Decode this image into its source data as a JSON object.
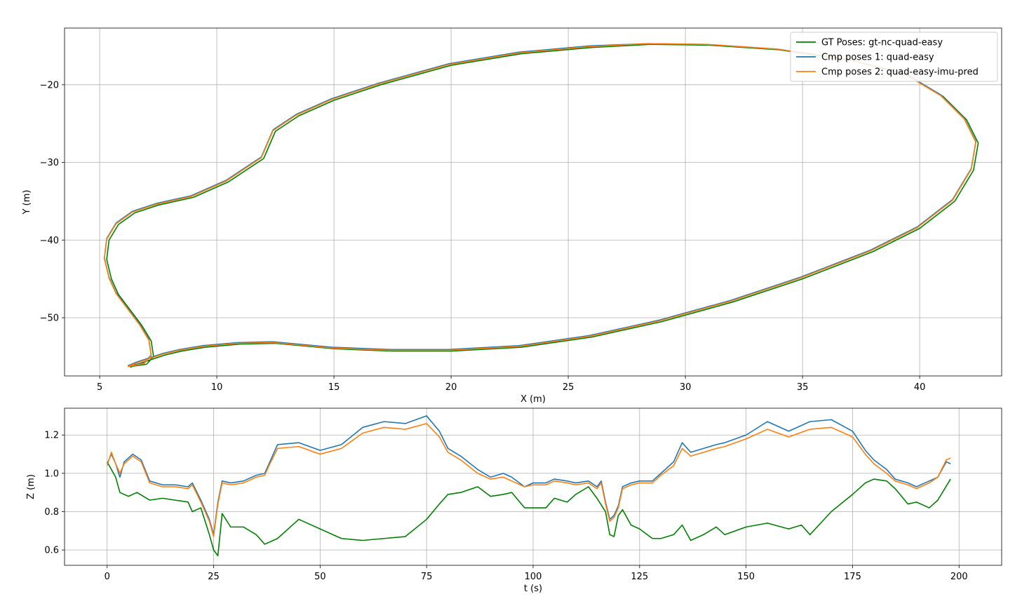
{
  "chart_data": [
    {
      "type": "line",
      "xlabel": "X (m)",
      "ylabel": "Y (m)",
      "xlim": [
        3.5,
        43.5
      ],
      "ylim": [
        -57.5,
        -12.7
      ],
      "xticks": [
        5,
        10,
        15,
        20,
        25,
        30,
        35,
        40
      ],
      "xtick_labels": [
        "5",
        "10",
        "15",
        "20",
        "25",
        "30",
        "35",
        "40"
      ],
      "yticks": [
        -20,
        -30,
        -40,
        -50
      ],
      "ytick_labels": [
        "−20",
        "−30",
        "−40",
        "−50"
      ],
      "grid": true,
      "legend": "top-right",
      "series": [
        {
          "name": "GT Poses: gt-nc-quad-easy",
          "color": "#008000",
          "x": [
            6.3,
            7.0,
            7.3,
            7.2,
            6.8,
            6.3,
            5.8,
            5.5,
            5.3,
            5.4,
            5.8,
            6.5,
            7.5,
            9.0,
            10.5,
            12.0,
            12.5,
            13.5,
            15.0,
            17.0,
            20.0,
            23.0,
            26.0,
            28.5,
            31.0,
            34.0,
            37.0,
            39.5,
            41.0,
            42.0,
            42.5,
            42.3,
            41.5,
            40.0,
            38.0,
            35.0,
            32.0,
            29.0,
            26.0,
            23.0,
            20.0,
            17.5,
            15.0,
            12.5,
            11.0,
            9.5,
            8.5,
            7.8,
            7.2,
            6.6,
            6.3
          ],
          "y": [
            -56.3,
            -56.0,
            -55.0,
            -53.0,
            -51.0,
            -49.0,
            -47.0,
            -45.0,
            -42.5,
            -40.0,
            -38.0,
            -36.5,
            -35.5,
            -34.5,
            -32.5,
            -29.5,
            -26.0,
            -24.0,
            -22.0,
            -20.0,
            -17.5,
            -16.0,
            -15.2,
            -14.8,
            -14.9,
            -15.5,
            -16.8,
            -18.8,
            -21.5,
            -24.5,
            -27.5,
            -31.0,
            -35.0,
            -38.5,
            -41.5,
            -45.0,
            -48.0,
            -50.5,
            -52.5,
            -53.8,
            -54.3,
            -54.3,
            -54.0,
            -53.3,
            -53.4,
            -53.8,
            -54.3,
            -54.8,
            -55.4,
            -56.0,
            -56.4
          ]
        },
        {
          "name": "Cmp poses 1: quad-easy",
          "color": "#1f77b4",
          "x": [
            6.2,
            6.9,
            7.2,
            7.1,
            6.7,
            6.2,
            5.7,
            5.4,
            5.2,
            5.3,
            5.7,
            6.4,
            7.4,
            8.9,
            10.4,
            11.9,
            12.4,
            13.4,
            14.9,
            16.9,
            19.9,
            22.9,
            25.9,
            28.4,
            30.9,
            33.9,
            36.9,
            39.4,
            40.9,
            41.9,
            42.4,
            42.2,
            41.4,
            39.9,
            37.9,
            34.9,
            31.9,
            28.9,
            25.9,
            22.9,
            19.9,
            17.4,
            14.9,
            12.4,
            10.9,
            9.4,
            8.4,
            7.7,
            7.1,
            6.5,
            6.2
          ],
          "y": [
            -56.2,
            -55.8,
            -54.8,
            -52.8,
            -50.8,
            -48.8,
            -46.8,
            -44.8,
            -42.3,
            -39.8,
            -37.8,
            -36.3,
            -35.3,
            -34.3,
            -32.3,
            -29.3,
            -25.8,
            -23.8,
            -21.8,
            -19.8,
            -17.3,
            -15.8,
            -15.0,
            -14.7,
            -14.8,
            -15.4,
            -16.7,
            -18.6,
            -21.3,
            -24.3,
            -27.3,
            -30.8,
            -34.8,
            -38.3,
            -41.3,
            -44.8,
            -47.8,
            -50.3,
            -52.3,
            -53.6,
            -54.1,
            -54.1,
            -53.8,
            -53.1,
            -53.2,
            -53.6,
            -54.1,
            -54.6,
            -55.2,
            -55.8,
            -56.2
          ]
        },
        {
          "name": "Cmp poses 2: quad-easy-imu-pred",
          "color": "#ff7f0e",
          "x": [
            6.2,
            6.9,
            7.2,
            7.1,
            6.7,
            6.2,
            5.7,
            5.4,
            5.2,
            5.3,
            5.7,
            6.4,
            7.4,
            8.9,
            10.4,
            11.9,
            12.4,
            13.4,
            14.9,
            16.9,
            19.9,
            22.9,
            25.9,
            28.4,
            30.9,
            33.9,
            36.9,
            39.4,
            40.9,
            41.9,
            42.4,
            42.2,
            41.4,
            39.9,
            37.9,
            34.9,
            31.9,
            28.9,
            25.9,
            22.9,
            19.9,
            17.4,
            14.9,
            12.4,
            10.9,
            9.4,
            8.4,
            7.7,
            7.1,
            6.5,
            6.2
          ],
          "y": [
            -56.3,
            -55.9,
            -54.9,
            -52.9,
            -50.9,
            -48.9,
            -46.9,
            -44.9,
            -42.4,
            -39.9,
            -37.9,
            -36.4,
            -35.4,
            -34.4,
            -32.4,
            -29.4,
            -25.9,
            -23.9,
            -21.9,
            -19.9,
            -17.4,
            -15.9,
            -15.1,
            -14.7,
            -14.8,
            -15.4,
            -16.7,
            -18.7,
            -21.4,
            -24.4,
            -27.4,
            -30.9,
            -34.9,
            -38.4,
            -41.4,
            -44.9,
            -47.9,
            -50.4,
            -52.4,
            -53.7,
            -54.2,
            -54.2,
            -53.9,
            -53.2,
            -53.3,
            -53.7,
            -54.2,
            -54.7,
            -55.3,
            -55.9,
            -56.3
          ]
        }
      ]
    },
    {
      "type": "line",
      "xlabel": "t (s)",
      "ylabel": "Z (m)",
      "xlim": [
        -10,
        210
      ],
      "ylim": [
        0.52,
        1.34
      ],
      "xticks": [
        0,
        25,
        50,
        75,
        100,
        125,
        150,
        175,
        200
      ],
      "xtick_labels": [
        "0",
        "25",
        "50",
        "75",
        "100",
        "125",
        "150",
        "175",
        "200"
      ],
      "yticks": [
        0.6,
        0.8,
        1.0,
        1.2
      ],
      "ytick_labels": [
        "0.6",
        "0.8",
        "1.0",
        "1.2"
      ],
      "grid": true,
      "series": [
        {
          "name": "GT Poses: gt-nc-quad-easy",
          "color": "#008000",
          "x": [
            0,
            2,
            3,
            5,
            7,
            10,
            13,
            16,
            19,
            20,
            22,
            24,
            25,
            26,
            27,
            29,
            32,
            35,
            37,
            40,
            45,
            50,
            55,
            60,
            65,
            70,
            75,
            78,
            80,
            83,
            87,
            90,
            93,
            95,
            98,
            100,
            103,
            105,
            108,
            110,
            113,
            115,
            117,
            118,
            119,
            120,
            121,
            123,
            125,
            128,
            130,
            133,
            135,
            137,
            140,
            143,
            145,
            150,
            155,
            160,
            163,
            165,
            170,
            175,
            178,
            180,
            183,
            185,
            188,
            190,
            193,
            195,
            198
          ],
          "y": [
            1.06,
            0.98,
            0.9,
            0.88,
            0.9,
            0.86,
            0.87,
            0.86,
            0.85,
            0.8,
            0.82,
            0.68,
            0.6,
            0.57,
            0.79,
            0.72,
            0.72,
            0.68,
            0.63,
            0.66,
            0.76,
            0.71,
            0.66,
            0.65,
            0.66,
            0.67,
            0.76,
            0.84,
            0.89,
            0.9,
            0.93,
            0.88,
            0.89,
            0.9,
            0.82,
            0.82,
            0.82,
            0.87,
            0.85,
            0.89,
            0.93,
            0.87,
            0.8,
            0.68,
            0.67,
            0.78,
            0.81,
            0.73,
            0.71,
            0.66,
            0.66,
            0.68,
            0.73,
            0.65,
            0.68,
            0.72,
            0.68,
            0.72,
            0.74,
            0.71,
            0.73,
            0.68,
            0.8,
            0.89,
            0.95,
            0.97,
            0.96,
            0.92,
            0.84,
            0.85,
            0.82,
            0.86,
            0.97
          ]
        },
        {
          "name": "Cmp poses 1: quad-easy",
          "color": "#1f77b4",
          "x": [
            0,
            1,
            2,
            3,
            4,
            6,
            8,
            10,
            13,
            16,
            19,
            20,
            22,
            24,
            25,
            26,
            27,
            29,
            32,
            35,
            37,
            38,
            40,
            45,
            50,
            55,
            60,
            65,
            70,
            75,
            78,
            80,
            83,
            87,
            90,
            93,
            95,
            98,
            100,
            103,
            105,
            108,
            110,
            113,
            115,
            116,
            117,
            118,
            119,
            120,
            121,
            123,
            125,
            128,
            130,
            133,
            135,
            137,
            140,
            143,
            145,
            150,
            155,
            160,
            165,
            170,
            175,
            178,
            180,
            183,
            185,
            188,
            190,
            193,
            195,
            197,
            198
          ],
          "y": [
            1.05,
            1.1,
            1.05,
            0.98,
            1.06,
            1.1,
            1.07,
            0.96,
            0.94,
            0.94,
            0.93,
            0.95,
            0.86,
            0.76,
            0.68,
            0.85,
            0.96,
            0.95,
            0.96,
            0.99,
            1.0,
            1.05,
            1.15,
            1.16,
            1.12,
            1.15,
            1.24,
            1.27,
            1.26,
            1.3,
            1.22,
            1.13,
            1.09,
            1.02,
            0.98,
            1.0,
            0.98,
            0.93,
            0.95,
            0.95,
            0.97,
            0.96,
            0.95,
            0.96,
            0.93,
            0.96,
            0.85,
            0.76,
            0.78,
            0.83,
            0.93,
            0.95,
            0.96,
            0.96,
            1.0,
            1.06,
            1.16,
            1.11,
            1.13,
            1.15,
            1.16,
            1.2,
            1.27,
            1.22,
            1.27,
            1.28,
            1.22,
            1.12,
            1.07,
            1.02,
            0.97,
            0.95,
            0.93,
            0.96,
            0.98,
            1.06,
            1.05
          ]
        },
        {
          "name": "Cmp poses 2: quad-easy-imu-pred",
          "color": "#ff7f0e",
          "x": [
            0,
            1,
            2,
            3,
            4,
            6,
            8,
            10,
            13,
            16,
            19,
            20,
            22,
            24,
            25,
            26,
            27,
            29,
            32,
            35,
            37,
            38,
            40,
            45,
            50,
            55,
            60,
            65,
            70,
            75,
            78,
            80,
            83,
            87,
            90,
            93,
            95,
            98,
            100,
            103,
            105,
            108,
            110,
            113,
            115,
            116,
            117,
            118,
            119,
            120,
            121,
            123,
            125,
            128,
            130,
            133,
            135,
            137,
            140,
            143,
            145,
            150,
            155,
            160,
            165,
            170,
            175,
            178,
            180,
            183,
            185,
            188,
            190,
            193,
            195,
            197,
            198
          ],
          "y": [
            1.04,
            1.11,
            1.05,
            1.0,
            1.05,
            1.09,
            1.06,
            0.95,
            0.93,
            0.93,
            0.92,
            0.94,
            0.85,
            0.75,
            0.67,
            0.84,
            0.95,
            0.94,
            0.95,
            0.98,
            0.99,
            1.04,
            1.13,
            1.14,
            1.1,
            1.13,
            1.21,
            1.24,
            1.23,
            1.26,
            1.19,
            1.11,
            1.07,
            1.0,
            0.97,
            0.98,
            0.96,
            0.93,
            0.94,
            0.94,
            0.96,
            0.95,
            0.94,
            0.95,
            0.92,
            0.95,
            0.84,
            0.75,
            0.77,
            0.82,
            0.92,
            0.94,
            0.95,
            0.95,
            0.99,
            1.04,
            1.13,
            1.09,
            1.11,
            1.13,
            1.14,
            1.18,
            1.23,
            1.19,
            1.23,
            1.24,
            1.19,
            1.1,
            1.05,
            1.0,
            0.96,
            0.94,
            0.92,
            0.95,
            0.98,
            1.07,
            1.08
          ]
        }
      ]
    }
  ]
}
